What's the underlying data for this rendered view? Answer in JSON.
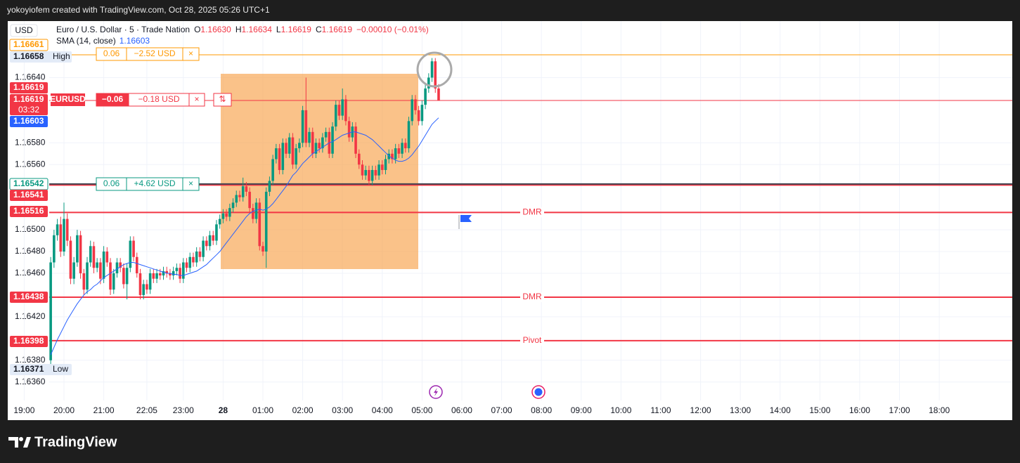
{
  "header": "yokoyiofem created with TradingView.com, Oct 28, 2025 05:26 UTC+1",
  "footer": {
    "brand": "TradingView"
  },
  "chart_data": {
    "type": "candlestick",
    "currency": "USD",
    "title": "Euro / U.S. Dollar · 5 · Trade Nation",
    "legend": [
      {
        "key": "O",
        "value": "1.16630"
      },
      {
        "key": "H",
        "value": "1.16634"
      },
      {
        "key": "L",
        "value": "1.16619"
      },
      {
        "key": "C",
        "value": "1.16619"
      }
    ],
    "change": "−0.00010 (−0.01%)",
    "up_color": "#089981",
    "down_color": "#f23645",
    "x": [
      "19:40",
      "19:45",
      "19:50",
      "19:55",
      "20:00",
      "20:05",
      "20:10",
      "20:15",
      "20:20",
      "20:25",
      "20:30",
      "20:35",
      "20:40",
      "20:45",
      "20:50",
      "20:55",
      "21:00",
      "21:05",
      "21:10",
      "21:15",
      "21:20",
      "21:25",
      "21:30",
      "21:35",
      "21:40",
      "21:45",
      "21:50",
      "21:55",
      "22:00",
      "22:05",
      "22:10",
      "22:15",
      "22:20",
      "22:25",
      "22:30",
      "22:35",
      "22:40",
      "22:45",
      "22:50",
      "22:55",
      "23:00",
      "23:05",
      "23:10",
      "23:15",
      "23:20",
      "23:25",
      "23:30",
      "23:35",
      "23:40",
      "23:45",
      "23:50",
      "23:55",
      "00:00",
      "00:05",
      "00:10",
      "00:15",
      "00:20",
      "00:25",
      "00:30",
      "00:35",
      "00:40",
      "00:45",
      "00:50",
      "00:55",
      "01:00",
      "01:05",
      "01:10",
      "01:15",
      "01:20",
      "01:25",
      "01:30",
      "01:35",
      "01:40",
      "01:45",
      "01:50",
      "01:55",
      "02:00",
      "02:05",
      "02:10",
      "02:15",
      "02:20",
      "02:25",
      "02:30",
      "02:35",
      "02:40",
      "02:45",
      "02:50",
      "02:55",
      "03:00",
      "03:05",
      "03:10",
      "03:15",
      "03:20",
      "03:25",
      "03:30",
      "03:35",
      "03:40",
      "03:45",
      "03:50",
      "03:55",
      "04:00",
      "04:05",
      "04:10",
      "04:15",
      "04:20",
      "04:25",
      "04:30",
      "04:35",
      "04:40",
      "04:45",
      "04:50",
      "04:55",
      "05:00",
      "05:05",
      "05:10",
      "05:15",
      "05:20",
      "05:25"
    ],
    "ohlc": [
      [
        1.1638,
        1.16475,
        1.16371,
        1.1647
      ],
      [
        1.1647,
        1.165,
        1.16465,
        1.16495
      ],
      [
        1.16495,
        1.1651,
        1.1649,
        1.16505
      ],
      [
        1.16505,
        1.16512,
        1.16475,
        1.1648
      ],
      [
        1.1648,
        1.16525,
        1.16476,
        1.1651
      ],
      [
        1.1651,
        1.16515,
        1.16485,
        1.1649
      ],
      [
        1.1649,
        1.16494,
        1.1645,
        1.16455
      ],
      [
        1.16455,
        1.16475,
        1.1645,
        1.1647
      ],
      [
        1.1647,
        1.165,
        1.16466,
        1.16495
      ],
      [
        1.16495,
        1.16499,
        1.16455,
        1.1646
      ],
      [
        1.1646,
        1.16464,
        1.1644,
        1.16445
      ],
      [
        1.16445,
        1.16475,
        1.16441,
        1.1647
      ],
      [
        1.1647,
        1.1649,
        1.16466,
        1.16485
      ],
      [
        1.16485,
        1.16489,
        1.1646,
        1.16465
      ],
      [
        1.16465,
        1.16474,
        1.16461,
        1.1647
      ],
      [
        1.1647,
        1.16474,
        1.1645,
        1.16455
      ],
      [
        1.16455,
        1.16485,
        1.16451,
        1.1648
      ],
      [
        1.1648,
        1.16484,
        1.16466,
        1.1647
      ],
      [
        1.1647,
        1.16474,
        1.1644,
        1.16445
      ],
      [
        1.16445,
        1.16464,
        1.16441,
        1.1646
      ],
      [
        1.1646,
        1.16474,
        1.16456,
        1.1647
      ],
      [
        1.1647,
        1.16474,
        1.16461,
        1.16465
      ],
      [
        1.16465,
        1.16469,
        1.16446,
        1.1645
      ],
      [
        1.1645,
        1.16469,
        1.16436,
        1.16465
      ],
      [
        1.16465,
        1.16494,
        1.16461,
        1.1649
      ],
      [
        1.1649,
        1.16494,
        1.16471,
        1.16475
      ],
      [
        1.16475,
        1.16479,
        1.16456,
        1.1646
      ],
      [
        1.1646,
        1.16464,
        1.16436,
        1.1644
      ],
      [
        1.1644,
        1.16454,
        1.16436,
        1.1645
      ],
      [
        1.1645,
        1.16454,
        1.16441,
        1.16445
      ],
      [
        1.16445,
        1.16464,
        1.16441,
        1.1646
      ],
      [
        1.1646,
        1.16464,
        1.16451,
        1.16455
      ],
      [
        1.16455,
        1.16464,
        1.16451,
        1.1646
      ],
      [
        1.1646,
        1.16464,
        1.16454,
        1.16458
      ],
      [
        1.16458,
        1.16466,
        1.16454,
        1.16462
      ],
      [
        1.16462,
        1.16466,
        1.16456,
        1.1646
      ],
      [
        1.1646,
        1.16464,
        1.16454,
        1.16458
      ],
      [
        1.16458,
        1.16466,
        1.16454,
        1.16462
      ],
      [
        1.16462,
        1.16469,
        1.16458,
        1.16465
      ],
      [
        1.16465,
        1.16469,
        1.16451,
        1.16455
      ],
      [
        1.16455,
        1.16474,
        1.16451,
        1.1647
      ],
      [
        1.1647,
        1.16474,
        1.16461,
        1.16465
      ],
      [
        1.16465,
        1.16479,
        1.16461,
        1.16475
      ],
      [
        1.16475,
        1.16479,
        1.16466,
        1.1647
      ],
      [
        1.1647,
        1.16484,
        1.16466,
        1.1648
      ],
      [
        1.1648,
        1.16484,
        1.16471,
        1.16475
      ],
      [
        1.16475,
        1.16494,
        1.16471,
        1.1649
      ],
      [
        1.1649,
        1.16494,
        1.16481,
        1.16485
      ],
      [
        1.16485,
        1.16499,
        1.16481,
        1.16495
      ],
      [
        1.16495,
        1.16499,
        1.16486,
        1.1649
      ],
      [
        1.1649,
        1.16509,
        1.16486,
        1.16505
      ],
      [
        1.16505,
        1.16514,
        1.16501,
        1.1651
      ],
      [
        1.1651,
        1.16519,
        1.16506,
        1.16515
      ],
      [
        1.16515,
        1.16519,
        1.16508,
        1.16512
      ],
      [
        1.16512,
        1.16524,
        1.16508,
        1.1652
      ],
      [
        1.1652,
        1.16529,
        1.16516,
        1.16525
      ],
      [
        1.16525,
        1.16536,
        1.16521,
        1.16532
      ],
      [
        1.16532,
        1.16536,
        1.16526,
        1.1653
      ],
      [
        1.1653,
        1.16548,
        1.16526,
        1.1654
      ],
      [
        1.1654,
        1.16544,
        1.16531,
        1.16535
      ],
      [
        1.16535,
        1.16539,
        1.16516,
        1.1652
      ],
      [
        1.1652,
        1.16524,
        1.16506,
        1.1651
      ],
      [
        1.1651,
        1.16529,
        1.16506,
        1.16525
      ],
      [
        1.16525,
        1.16529,
        1.16481,
        1.16485
      ],
      [
        1.16485,
        1.16489,
        1.16476,
        1.1648
      ],
      [
        1.1648,
        1.16539,
        1.16465,
        1.16535
      ],
      [
        1.16535,
        1.16549,
        1.16531,
        1.16545
      ],
      [
        1.16545,
        1.16569,
        1.16541,
        1.16565
      ],
      [
        1.16565,
        1.16579,
        1.16561,
        1.16575
      ],
      [
        1.16575,
        1.16579,
        1.16551,
        1.16555
      ],
      [
        1.16555,
        1.16584,
        1.16551,
        1.1658
      ],
      [
        1.1658,
        1.16584,
        1.16566,
        1.1657
      ],
      [
        1.1657,
        1.16589,
        1.16566,
        1.16585
      ],
      [
        1.16585,
        1.16589,
        1.16556,
        1.1656
      ],
      [
        1.1656,
        1.16579,
        1.16556,
        1.16575
      ],
      [
        1.16575,
        1.16584,
        1.16571,
        1.1658
      ],
      [
        1.1658,
        1.16614,
        1.16576,
        1.1661
      ],
      [
        1.1661,
        1.1664,
        1.16576,
        1.1658
      ],
      [
        1.1658,
        1.16594,
        1.16576,
        1.1659
      ],
      [
        1.1659,
        1.16594,
        1.16566,
        1.1657
      ],
      [
        1.1657,
        1.16584,
        1.16566,
        1.1658
      ],
      [
        1.1658,
        1.16584,
        1.16571,
        1.16575
      ],
      [
        1.16575,
        1.16589,
        1.16571,
        1.16585
      ],
      [
        1.16585,
        1.16594,
        1.16581,
        1.1659
      ],
      [
        1.1659,
        1.16594,
        1.16566,
        1.1657
      ],
      [
        1.1657,
        1.16599,
        1.16566,
        1.16595
      ],
      [
        1.16595,
        1.16619,
        1.16591,
        1.16615
      ],
      [
        1.16615,
        1.16619,
        1.16601,
        1.16605
      ],
      [
        1.16605,
        1.1663,
        1.16601,
        1.1662
      ],
      [
        1.1662,
        1.16624,
        1.16596,
        1.166
      ],
      [
        1.166,
        1.16604,
        1.16581,
        1.16585
      ],
      [
        1.16585,
        1.16599,
        1.16581,
        1.16595
      ],
      [
        1.16595,
        1.16599,
        1.16566,
        1.1657
      ],
      [
        1.1657,
        1.16574,
        1.16556,
        1.1656
      ],
      [
        1.1656,
        1.16564,
        1.16546,
        1.1655
      ],
      [
        1.1655,
        1.16559,
        1.16546,
        1.16555
      ],
      [
        1.16555,
        1.16559,
        1.16541,
        1.16545
      ],
      [
        1.16545,
        1.16559,
        1.16541,
        1.16555
      ],
      [
        1.16555,
        1.16559,
        1.16546,
        1.1655
      ],
      [
        1.1655,
        1.16564,
        1.16546,
        1.1656
      ],
      [
        1.1656,
        1.16564,
        1.16551,
        1.16555
      ],
      [
        1.16555,
        1.16569,
        1.16551,
        1.16565
      ],
      [
        1.16565,
        1.16574,
        1.16561,
        1.1657
      ],
      [
        1.1657,
        1.16574,
        1.16561,
        1.16565
      ],
      [
        1.16565,
        1.16579,
        1.16561,
        1.16575
      ],
      [
        1.16575,
        1.16579,
        1.16566,
        1.1657
      ],
      [
        1.1657,
        1.16584,
        1.16566,
        1.1658
      ],
      [
        1.1658,
        1.16584,
        1.16571,
        1.16575
      ],
      [
        1.16575,
        1.16604,
        1.16571,
        1.166
      ],
      [
        1.166,
        1.16624,
        1.16596,
        1.1662
      ],
      [
        1.1662,
        1.16624,
        1.16606,
        1.1661
      ],
      [
        1.1661,
        1.16614,
        1.16596,
        1.166
      ],
      [
        1.166,
        1.16619,
        1.16596,
        1.16615
      ],
      [
        1.16615,
        1.16634,
        1.16611,
        1.1663
      ],
      [
        1.1663,
        1.16644,
        1.16626,
        1.1664
      ],
      [
        1.1664,
        1.16658,
        1.16636,
        1.16655
      ],
      [
        1.16655,
        1.16658,
        1.16626,
        1.1663
      ],
      [
        1.1663,
        1.16634,
        1.16619,
        1.16619
      ]
    ],
    "series": [
      {
        "name": "SMA (14, close)",
        "color": "#2962ff",
        "values": [
          1.16385,
          1.16392,
          1.16399,
          1.16405,
          1.16411,
          1.16417,
          1.16422,
          1.16427,
          1.16432,
          1.16436,
          1.1644,
          1.16443,
          1.16445,
          1.16448,
          1.1645,
          1.16453,
          1.16456,
          1.16458,
          1.1646,
          1.16462,
          1.16464,
          1.16466,
          1.16468,
          1.16469,
          1.1647,
          1.1647,
          1.16469,
          1.16468,
          1.16467,
          1.16466,
          1.16465,
          1.16464,
          1.16463,
          1.16462,
          1.16461,
          1.1646,
          1.1646,
          1.16459,
          1.16459,
          1.16458,
          1.16458,
          1.16459,
          1.1646,
          1.16461,
          1.16462,
          1.16464,
          1.16466,
          1.16468,
          1.16471,
          1.16474,
          1.16477,
          1.1648,
          1.16484,
          1.16488,
          1.16492,
          1.16496,
          1.165,
          1.16504,
          1.16508,
          1.16512,
          1.16515,
          1.16517,
          1.16518,
          1.16519,
          1.16518,
          1.16519,
          1.16521,
          1.16524,
          1.16528,
          1.16532,
          1.16536,
          1.1654,
          1.16545,
          1.1655,
          1.16553,
          1.16557,
          1.16561,
          1.16564,
          1.16567,
          1.1657,
          1.16572,
          1.16574,
          1.16576,
          1.16578,
          1.1658,
          1.16581,
          1.16583,
          1.16585,
          1.16587,
          1.16588,
          1.16589,
          1.1659,
          1.1659,
          1.16589,
          1.16588,
          1.16587,
          1.16585,
          1.16583,
          1.1658,
          1.16577,
          1.16574,
          1.16571,
          1.16568,
          1.16566,
          1.16564,
          1.16563,
          1.16563,
          1.16564,
          1.16566,
          1.16569,
          1.16573,
          1.16577,
          1.16582,
          1.16587,
          1.16592,
          1.16597,
          1.166,
          1.16603
        ]
      }
    ],
    "ylim": [
      1.16343,
      1.16692
    ],
    "yticks": [
      {
        "value": 1.1664,
        "label": "1.16640"
      },
      {
        "value": 1.1658,
        "label": "1.16580"
      },
      {
        "value": 1.1656,
        "label": "1.16560"
      },
      {
        "value": 1.165,
        "label": "1.16500"
      },
      {
        "value": 1.1648,
        "label": "1.16480"
      },
      {
        "value": 1.1646,
        "label": "1.16460"
      },
      {
        "value": 1.1642,
        "label": "1.16420"
      },
      {
        "value": 1.1638,
        "label": "1.16380"
      },
      {
        "value": 1.1636,
        "label": "1.16360"
      }
    ],
    "xticks": [
      "20:00",
      "21:00",
      "22:05",
      "23:00",
      {
        "value": "00:00",
        "label": "28"
      },
      "01:00",
      "02:00",
      "03:00",
      "04:00",
      "05:00",
      "06:00",
      "07:00",
      "08:00",
      "09:00",
      "10:00",
      "11:00",
      "12:00",
      "13:00",
      "14:00",
      "15:00",
      "16:00",
      "17:00",
      "18:00",
      "19:00"
    ],
    "grid": true,
    "levels": [
      {
        "value": 1.16661,
        "color": "#ff9800"
      },
      {
        "value": 1.16619,
        "color": "#f23645"
      },
      {
        "value": 1.16542,
        "color": "#434651"
      },
      {
        "value": 1.16541,
        "color": "#f23645"
      },
      {
        "value": 1.16516,
        "color": "#f23645",
        "label": "DMR"
      },
      {
        "value": 1.16438,
        "color": "#f23645",
        "label": "DMR"
      },
      {
        "value": 1.16398,
        "color": "#f23645",
        "label": "Pivot"
      }
    ],
    "price_labels": [
      {
        "value": 1.16661,
        "bg": "#ffffff",
        "fg": "#ff9800",
        "border": "#ff9800"
      },
      {
        "value": 1.16658,
        "bg": "#e3ebf7",
        "fg": "#131722",
        "tag": "High"
      },
      {
        "value": 1.16619,
        "bg": "#f23645",
        "fg": "#ffffff"
      },
      {
        "value": 1.16619,
        "bg": "#f23645",
        "fg": "#ffffff",
        "tag": "03:32"
      },
      {
        "value": 1.16603,
        "bg": "#2962ff",
        "fg": "#ffffff"
      },
      {
        "value": 1.16542,
        "bg": "#ffffff",
        "fg": "#089981",
        "border": "#089981"
      },
      {
        "value": 1.16541,
        "bg": "#f23645",
        "fg": "#ffffff"
      },
      {
        "value": 1.16516,
        "bg": "#f23645",
        "fg": "#ffffff"
      },
      {
        "value": 1.16438,
        "bg": "#f23645",
        "fg": "#ffffff"
      },
      {
        "value": 1.16398,
        "bg": "#f23645",
        "fg": "#ffffff"
      },
      {
        "value": 1.16371,
        "bg": "#e3ebf7",
        "fg": "#131722",
        "tag": "Low"
      }
    ],
    "positions": [
      {
        "color": "#ff9800",
        "cells": [
          "0.06",
          "−2.52 USD",
          "×"
        ]
      },
      {
        "color": "#f23645",
        "symbol": "EURUSD",
        "cells": [
          "−0.06",
          "−0.18 USD",
          "×",
          "⇅"
        ]
      },
      {
        "color": "#089981",
        "cells": [
          "0.06",
          "+4.62 USD",
          "×"
        ]
      }
    ]
  }
}
